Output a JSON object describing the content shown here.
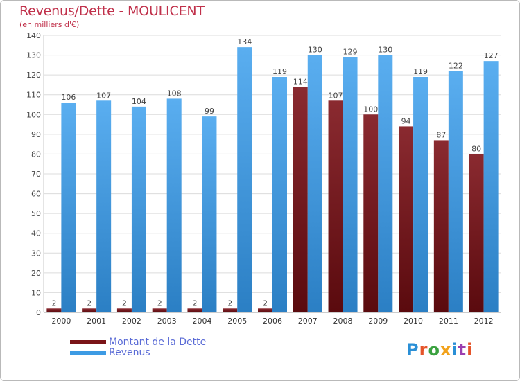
{
  "title": "Revenus/Dette - MOULICENT",
  "subtitle": "(en milliers d'€)",
  "logo_text": "Proxiti",
  "colors": {
    "dette": "#7a1418",
    "revenus": "#3d9be4",
    "title": "#c0304a",
    "legend_text": "#5a6bd6",
    "grid": "#dcdcdc"
  },
  "chart_data": {
    "type": "bar",
    "categories": [
      "2000",
      "2001",
      "2002",
      "2003",
      "2004",
      "2005",
      "2006",
      "2007",
      "2008",
      "2009",
      "2010",
      "2011",
      "2012"
    ],
    "series": [
      {
        "name": "Montant de la Dette",
        "values": [
          2,
          2,
          2,
          2,
          2,
          2,
          2,
          114,
          107,
          100,
          94,
          87,
          80
        ]
      },
      {
        "name": "Revenus",
        "values": [
          106,
          107,
          104,
          108,
          99,
          134,
          119,
          130,
          129,
          130,
          119,
          122,
          127
        ]
      }
    ],
    "ylim": [
      0,
      140
    ],
    "yticks": [
      0,
      10,
      20,
      30,
      40,
      50,
      60,
      70,
      80,
      90,
      100,
      110,
      120,
      130,
      140
    ],
    "grid": true,
    "legend_position": "bottom-left"
  }
}
